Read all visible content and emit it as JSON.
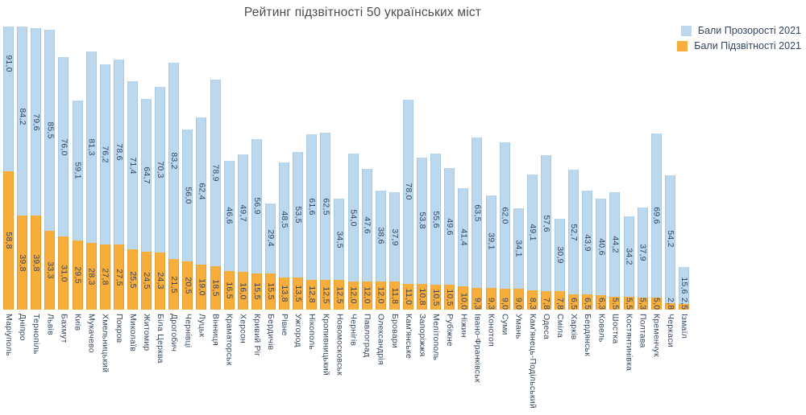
{
  "chart_data": {
    "type": "bar",
    "stacked": true,
    "title": "Рейтинг підзвітності 50 українських міст",
    "ylim": [
      0,
      120
    ],
    "grid": false,
    "legend_position": "top-right",
    "value_decimal_separator": ",",
    "categories": [
      "Маріуполь",
      "Дніпро",
      "Тернопіль",
      "Львів",
      "Бахмут",
      "Київ",
      "Мукачево",
      "Хмельницький",
      "Покров",
      "Миколаїв",
      "Житомир",
      "Біла Церква",
      "Дрогобич",
      "Чернівці",
      "Луцьк",
      "Вінниця",
      "Краматорськ",
      "Херсон",
      "Кривий Ріг",
      "Бердичів",
      "Рівне",
      "Ужгород",
      "Нікополь",
      "Кропивницький",
      "Новомосковськ",
      "Чернігів",
      "Павлоград",
      "Олександрія",
      "Бровари",
      "Кам'янське",
      "Запоріжжя",
      "Мелітополь",
      "Рубіжне",
      "Ніжин",
      "Івано-Франківськ",
      "Конотоп",
      "Суми",
      "Умань",
      "Кам'янець-Подільський",
      "Одеса",
      "Сміла",
      "Харків",
      "Бердянськ",
      "Ковель",
      "Шостка",
      "Костянтинівка",
      "Полтава",
      "Кременчук",
      "Черкаси",
      "Ізмаїл"
    ],
    "series": [
      {
        "name": "Бали Прозорості 2021",
        "color": "#bcd8ee",
        "values": [
          91.0,
          84.2,
          79.6,
          85.5,
          76.0,
          59.1,
          81.3,
          76.2,
          78.6,
          71.4,
          64.7,
          70.3,
          83.2,
          56.0,
          62.4,
          78.9,
          46.6,
          49.7,
          56.9,
          29.4,
          48.5,
          53.5,
          61.6,
          62.5,
          34.5,
          54.0,
          47.6,
          38.6,
          37.9,
          78.0,
          53.8,
          55.6,
          49.6,
          41.4,
          63.5,
          39.1,
          62.0,
          34.1,
          49.1,
          57.6,
          30.9,
          52.7,
          43.9,
          40.6,
          44.2,
          34.2,
          37.9,
          69.6,
          54.2,
          15.6
        ]
      },
      {
        "name": "Бали Підзвітності 2021",
        "color": "#f8ae3d",
        "values": [
          58.8,
          39.8,
          39.8,
          33.3,
          31.0,
          29.5,
          28.3,
          27.8,
          27.5,
          25.5,
          24.5,
          24.3,
          21.5,
          20.5,
          19.0,
          18.5,
          16.5,
          16.0,
          15.5,
          15.5,
          13.8,
          13.5,
          12.8,
          12.5,
          12.5,
          12.0,
          12.0,
          12.0,
          11.8,
          11.0,
          10.8,
          10.5,
          10.5,
          10.0,
          9.3,
          9.3,
          9.0,
          9.0,
          8.3,
          7.8,
          7.8,
          6.5,
          6.5,
          6.3,
          5.5,
          5.5,
          5.3,
          5.0,
          2.8,
          2.5
        ]
      }
    ]
  },
  "legend": [
    {
      "label": "Бали Прозорості 2021",
      "color": "#bcd8ee"
    },
    {
      "label": "Бали Підзвітності 2021",
      "color": "#f8ae3d"
    }
  ],
  "text_color": "#35455e"
}
